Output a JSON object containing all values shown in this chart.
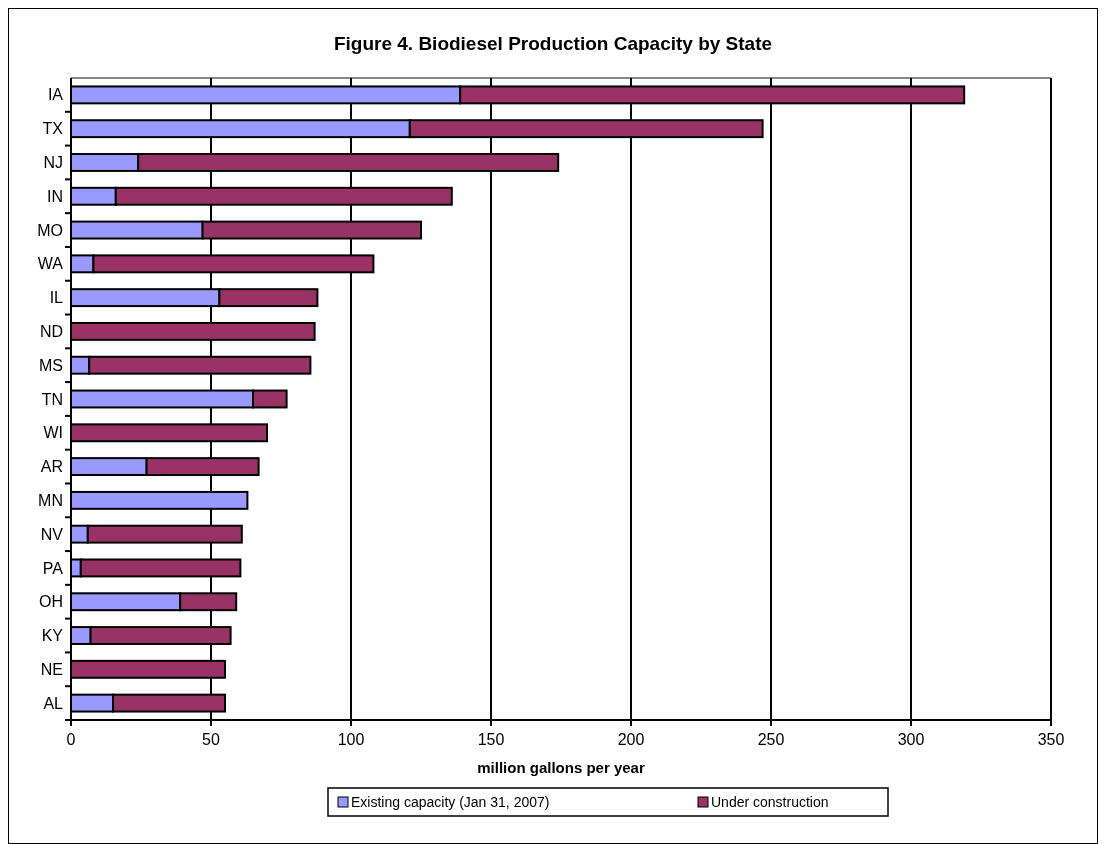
{
  "chart_data": {
    "type": "bar",
    "orientation": "horizontal",
    "stacked": true,
    "title": "Figure 4. Biodiesel Production Capacity by State",
    "xlabel": "million gallons per year",
    "categories": [
      "IA",
      "TX",
      "NJ",
      "IN",
      "MO",
      "WA",
      "IL",
      "ND",
      "MS",
      "TN",
      "WI",
      "AR",
      "MN",
      "NV",
      "PA",
      "OH",
      "KY",
      "NE",
      "AL"
    ],
    "series": [
      {
        "name": "Existing capacity (Jan 31, 2007)",
        "color": "#9999ff",
        "values": [
          139,
          121,
          24,
          16,
          47,
          8,
          53,
          0,
          6.5,
          65,
          0,
          27,
          63,
          6,
          3.5,
          39,
          7,
          0,
          15
        ]
      },
      {
        "name": "Under construction",
        "color": "#993366",
        "values": [
          180,
          126,
          150,
          120,
          78,
          100,
          35,
          87,
          79,
          12,
          70,
          40,
          0,
          55,
          57,
          20,
          50,
          55,
          40
        ]
      }
    ],
    "xlim": [
      0,
      350
    ],
    "xticks": [
      0,
      50,
      100,
      150,
      200,
      250,
      300,
      350
    ],
    "grid": "x",
    "legend": "bottom"
  }
}
